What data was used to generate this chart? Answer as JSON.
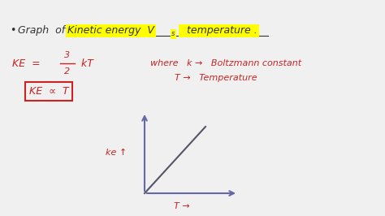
{
  "bg_color": "#f0f0f0",
  "text_color_black": "#333333",
  "text_color_red": "#cc2222",
  "highlight_color": "#ffff00",
  "graph_line_color": "#6666aa",
  "diagonal_line_color": "#555566",
  "bullet": "•",
  "title_plain": "Graph  of  ",
  "title_highlight1": "Kinetic energy  V",
  "title_vs_sub": "s",
  "title_highlight2": "  temperature .",
  "eq_left": "KE  = ",
  "eq_frac_top": "3",
  "eq_frac_bot": "2",
  "eq_right": " kT",
  "where1": "where   k →   Boltzmann constant",
  "where2": "T →   Temperature",
  "boxed": "KE  ∝  T",
  "ke_label": "ke ↑",
  "t_label": "T →"
}
